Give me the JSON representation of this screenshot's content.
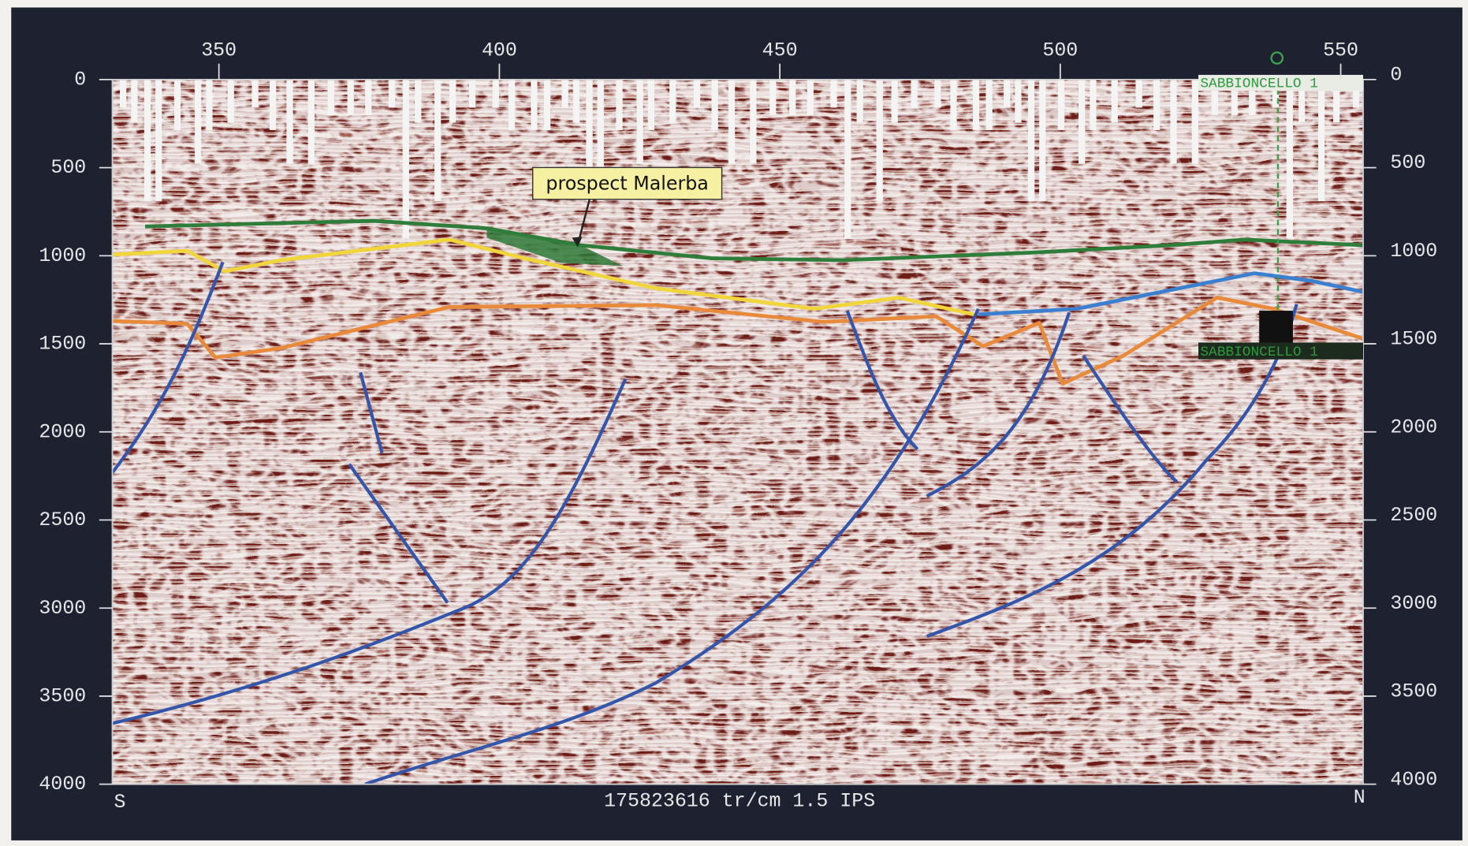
{
  "chart_data": {
    "type": "seismic",
    "xlim": [
      331,
      554
    ],
    "xticks": [
      350,
      400,
      450,
      500,
      550
    ],
    "ylim": [
      0,
      4000
    ],
    "yticks": [
      0,
      500,
      1000,
      1500,
      2000,
      2500,
      3000,
      3500,
      4000
    ],
    "annotation": "prospect Malerba",
    "well": "SABBIONCELLO 1",
    "left_label": "S",
    "right_label": "N",
    "footer": "175823616 tr/cm 1.5 IPS"
  }
}
